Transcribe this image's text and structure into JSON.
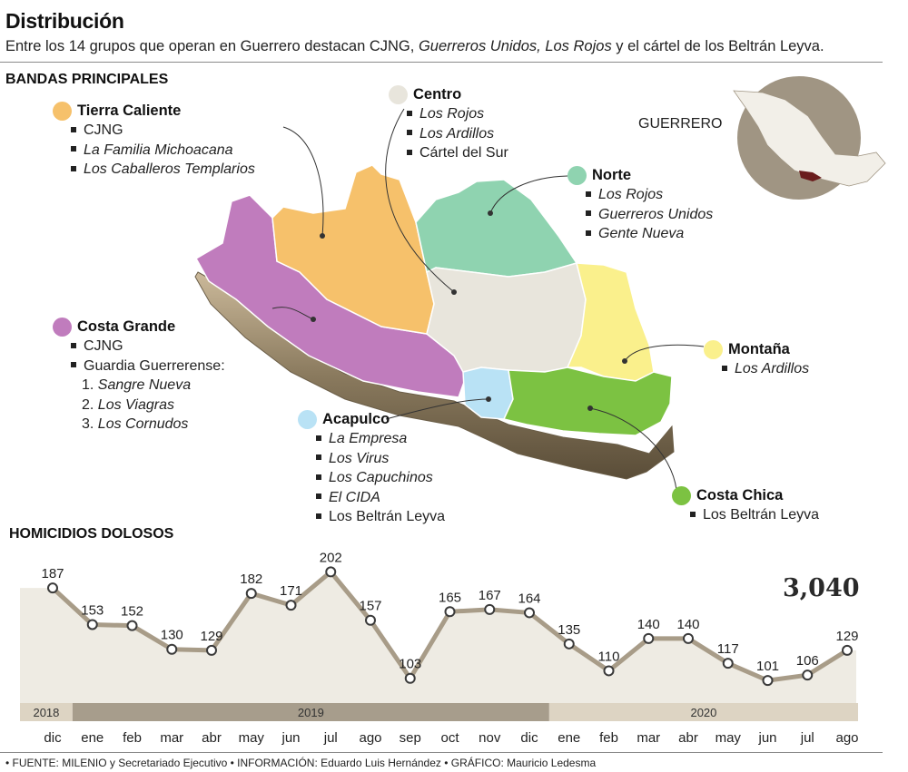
{
  "header": {
    "title": "Distribución",
    "subtitle_parts": [
      {
        "text": "Entre los 14 grupos que operan en Guerrero destacan CJNG, ",
        "italic": false
      },
      {
        "text": "Guerreros Unidos, Los Rojos",
        "italic": true
      },
      {
        "text": " y el cártel de los Beltrán Leyva.",
        "italic": false
      }
    ]
  },
  "map_section": {
    "heading": "BANDAS PRINCIPALES",
    "state_label": "GUERRERO",
    "regions": [
      {
        "name": "Tierra Caliente",
        "color": "#f6c16b",
        "items": [
          {
            "text": "CJNG",
            "italic": false
          },
          {
            "text": "La Familia Michoacana",
            "italic": true
          },
          {
            "text": "Los Caballeros Templarios",
            "italic": true
          }
        ]
      },
      {
        "name": "Centro",
        "color": "#e8e5dc",
        "items": [
          {
            "text": "Los Rojos",
            "italic": true
          },
          {
            "text": "Los Ardillos",
            "italic": true
          },
          {
            "text": "Cártel del Sur",
            "italic": false
          }
        ]
      },
      {
        "name": "Norte",
        "color": "#8fd3b0",
        "items": [
          {
            "text": "Los Rojos",
            "italic": true
          },
          {
            "text": "Guerreros Unidos",
            "italic": true
          },
          {
            "text": "Gente Nueva",
            "italic": true
          }
        ]
      },
      {
        "name": "Costa Grande",
        "color": "#c07cbd",
        "items": [
          {
            "text": "CJNG",
            "italic": false
          },
          {
            "text": "Guardia Guerrerense:",
            "italic": false
          }
        ],
        "numbered": [
          {
            "text": "1. ",
            "name": "Sangre Nueva"
          },
          {
            "text": "2. ",
            "name": "Los Viagras"
          },
          {
            "text": "3. ",
            "name": "Los Cornudos"
          }
        ]
      },
      {
        "name": "Montaña",
        "color": "#faf08c",
        "items": [
          {
            "text": "Los Ardillos",
            "italic": true
          }
        ]
      },
      {
        "name": "Acapulco",
        "color": "#b9e2f5",
        "items": [
          {
            "text": "La Empresa",
            "italic": true
          },
          {
            "text": "Los Virus",
            "italic": true
          },
          {
            "text": "Los Capuchinos",
            "italic": true
          },
          {
            "text": "El CIDA",
            "italic": true
          },
          {
            "text": "Los Beltrán Leyva",
            "italic": false
          }
        ]
      },
      {
        "name": "Costa Chica",
        "color": "#7cc242",
        "items": [
          {
            "text": "Los Beltrán Leyva",
            "italic": false
          }
        ]
      }
    ]
  },
  "chart_section": {
    "heading": "HOMICIDIOS DOLOSOS",
    "total": "3,040"
  },
  "chart_data": {
    "type": "area",
    "title": "HOMICIDIOS DOLOSOS",
    "categories": [
      "dic",
      "ene",
      "feb",
      "mar",
      "abr",
      "may",
      "jun",
      "jul",
      "ago",
      "sep",
      "oct",
      "nov",
      "dic",
      "ene",
      "feb",
      "mar",
      "abr",
      "may",
      "jun",
      "jul",
      "ago"
    ],
    "values": [
      187,
      153,
      152,
      130,
      129,
      182,
      171,
      202,
      157,
      103,
      165,
      167,
      164,
      135,
      110,
      140,
      140,
      117,
      101,
      106,
      129
    ],
    "years": [
      {
        "label": "2018",
        "span": 1
      },
      {
        "label": "2019",
        "span": 12
      },
      {
        "label": "2020",
        "span": 8
      }
    ],
    "grid": false,
    "colors": {
      "line": "#a89c88",
      "fill": "#eeebe3",
      "marker_fill": "#ffffff",
      "marker_stroke": "#3a3a3a",
      "year_2018": "#ddd4c3",
      "year_2019": "#a79d8c",
      "year_2020": "#ddd4c3"
    }
  },
  "footer": {
    "text": "• FUENTE: MILENIO y Secretariado Ejecutivo • INFORMACIÓN: Eduardo Luis Hernández • GRÁFICO: Mauricio Ledesma"
  }
}
